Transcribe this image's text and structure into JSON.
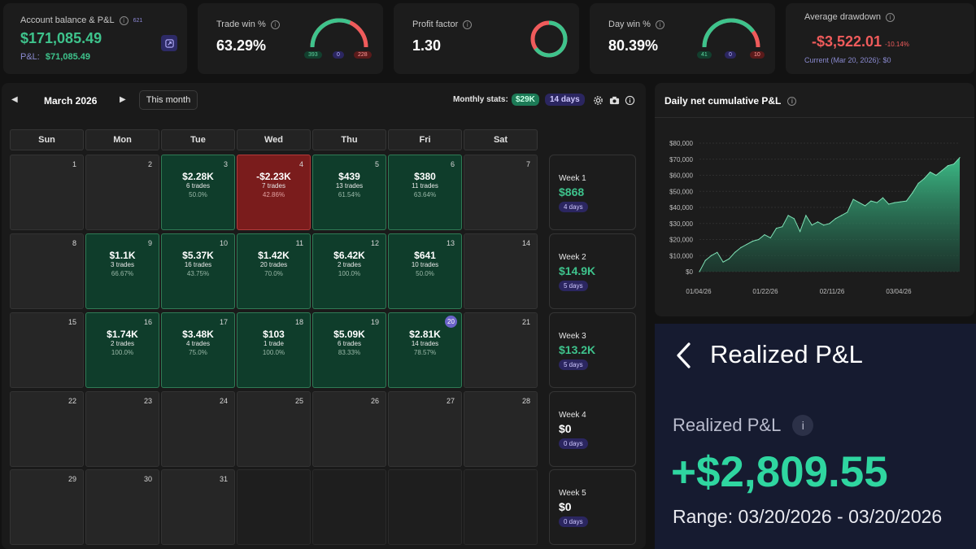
{
  "account": {
    "label": "Account balance & P&L",
    "count": "621",
    "balance": "$171,085.49",
    "pnl_label": "P&L:",
    "pnl": "$71,085.49"
  },
  "trade_win": {
    "label": "Trade win %",
    "value": "63.29%",
    "wins": "393",
    "neutral": "0",
    "losses": "228",
    "win_fraction": 0.6329
  },
  "profit_factor": {
    "label": "Profit factor",
    "value": "1.30"
  },
  "day_win": {
    "label": "Day win %",
    "value": "80.39%",
    "wins": "41",
    "neutral": "0",
    "losses": "10",
    "win_fraction": 0.8039
  },
  "drawdown": {
    "label": "Average drawdown",
    "value": "-$3,522.01",
    "pct": "-10.14%",
    "current": "Current (Mar 20, 2026): $0"
  },
  "calendar": {
    "month": "March 2026",
    "this_month": "This month",
    "stats_label": "Monthly stats:",
    "stats_pnl": "$29K",
    "stats_days": "14 days",
    "days": [
      "Sun",
      "Mon",
      "Tue",
      "Wed",
      "Thu",
      "Fri",
      "Sat"
    ],
    "cells": [
      {
        "d": "1",
        "s": "empty"
      },
      {
        "d": "2",
        "s": "empty"
      },
      {
        "d": "3",
        "s": "win",
        "pnl": "$2.28K",
        "trades": "6 trades",
        "wr": "50.0%"
      },
      {
        "d": "4",
        "s": "loss",
        "pnl": "-$2.23K",
        "trades": "7 trades",
        "wr": "42.86%"
      },
      {
        "d": "5",
        "s": "win",
        "pnl": "$439",
        "trades": "13 trades",
        "wr": "61.54%"
      },
      {
        "d": "6",
        "s": "win",
        "pnl": "$380",
        "trades": "11 trades",
        "wr": "63.64%"
      },
      {
        "d": "7",
        "s": "empty"
      },
      {
        "d": "8",
        "s": "empty"
      },
      {
        "d": "9",
        "s": "win",
        "pnl": "$1.1K",
        "trades": "3 trades",
        "wr": "66.67%"
      },
      {
        "d": "10",
        "s": "win",
        "pnl": "$5.37K",
        "trades": "16 trades",
        "wr": "43.75%"
      },
      {
        "d": "11",
        "s": "win",
        "pnl": "$1.42K",
        "trades": "20 trades",
        "wr": "70.0%"
      },
      {
        "d": "12",
        "s": "win",
        "pnl": "$6.42K",
        "trades": "2 trades",
        "wr": "100.0%"
      },
      {
        "d": "13",
        "s": "win",
        "pnl": "$641",
        "trades": "10 trades",
        "wr": "50.0%"
      },
      {
        "d": "14",
        "s": "empty"
      },
      {
        "d": "15",
        "s": "empty"
      },
      {
        "d": "16",
        "s": "win",
        "pnl": "$1.74K",
        "trades": "2 trades",
        "wr": "100.0%"
      },
      {
        "d": "17",
        "s": "win",
        "pnl": "$3.48K",
        "trades": "4 trades",
        "wr": "75.0%"
      },
      {
        "d": "18",
        "s": "win",
        "pnl": "$103",
        "trades": "1 trade",
        "wr": "100.0%"
      },
      {
        "d": "19",
        "s": "win",
        "pnl": "$5.09K",
        "trades": "6 trades",
        "wr": "83.33%"
      },
      {
        "d": "20",
        "s": "win",
        "pnl": "$2.81K",
        "trades": "14 trades",
        "wr": "78.57%",
        "today": true
      },
      {
        "d": "21",
        "s": "empty"
      },
      {
        "d": "22",
        "s": "empty"
      },
      {
        "d": "23",
        "s": "empty"
      },
      {
        "d": "24",
        "s": "empty"
      },
      {
        "d": "25",
        "s": "empty"
      },
      {
        "d": "26",
        "s": "empty"
      },
      {
        "d": "27",
        "s": "empty"
      },
      {
        "d": "28",
        "s": "empty"
      },
      {
        "d": "29",
        "s": "empty"
      },
      {
        "d": "30",
        "s": "empty"
      },
      {
        "d": "31",
        "s": "empty"
      },
      {
        "d": "",
        "s": "blank"
      },
      {
        "d": "",
        "s": "blank"
      },
      {
        "d": "",
        "s": "blank"
      },
      {
        "d": "",
        "s": "blank"
      }
    ],
    "weeks": [
      {
        "label": "Week 1",
        "value": "$868",
        "days": "4 days",
        "pos": true
      },
      {
        "label": "Week 2",
        "value": "$14.9K",
        "days": "5 days",
        "pos": true
      },
      {
        "label": "Week 3",
        "value": "$13.2K",
        "days": "5 days",
        "pos": true
      },
      {
        "label": "Week 4",
        "value": "$0",
        "days": "0 days",
        "pos": false
      },
      {
        "label": "Week 5",
        "value": "$0",
        "days": "0 days",
        "pos": false
      }
    ]
  },
  "cum_chart": {
    "title": "Daily net cumulative P&L"
  },
  "chart_data": {
    "type": "area",
    "title": "Daily net cumulative P&L",
    "xlabel": "",
    "ylabel": "",
    "x_ticks": [
      "01/04/26",
      "01/22/26",
      "02/11/26",
      "03/04/26"
    ],
    "y_ticks": [
      "$80,000",
      "$70,000",
      "$60,000",
      "$50,000",
      "$40,000",
      "$30,000",
      "$20,000",
      "$10,000",
      "$0"
    ],
    "ylim": [
      0,
      80000
    ],
    "grid": true,
    "values": [
      0,
      7000,
      10000,
      12000,
      6000,
      8000,
      12000,
      15000,
      17000,
      19000,
      20000,
      23000,
      21000,
      27000,
      28000,
      35000,
      33000,
      25000,
      35000,
      29000,
      31000,
      29000,
      30000,
      33000,
      35000,
      37000,
      45000,
      43000,
      41000,
      44000,
      43000,
      46000,
      42000,
      43000,
      43500,
      44000,
      49000,
      55000,
      58000,
      62000,
      60000,
      63000,
      66000,
      67000,
      71000
    ]
  },
  "realized": {
    "header": "Realized P&L",
    "label": "Realized P&L",
    "value": "+$2,809.55",
    "range": "Range: 03/20/2026 - 03/20/2026"
  },
  "colors": {
    "green": "#3ec38c",
    "red": "#ef5b5b",
    "panel": "#1c1c1c",
    "navy": "#161b30"
  }
}
